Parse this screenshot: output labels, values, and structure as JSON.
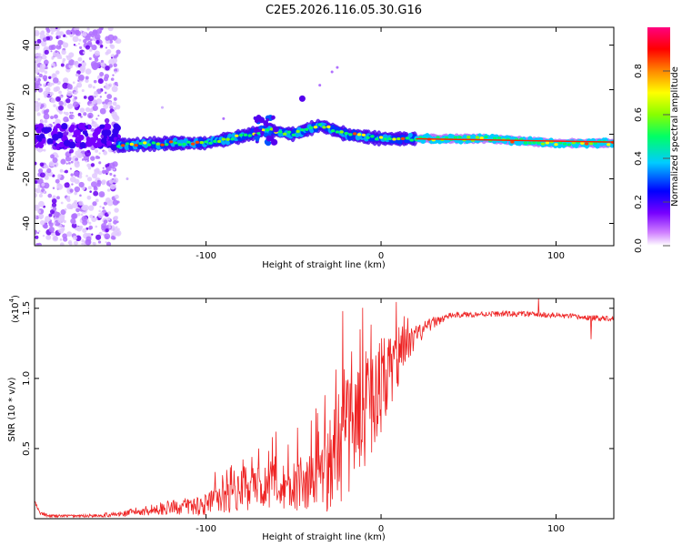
{
  "title": "C2E5.2026.116.05.30.G16",
  "chart_data": [
    {
      "type": "heatmap",
      "xlabel": "Height of straight line (km)",
      "ylabel": "Frequency (Hz)",
      "xlim": [
        -198,
        133
      ],
      "ylim": [
        -50,
        48
      ],
      "xticks": [
        -100,
        0,
        100
      ],
      "xtick_labels": [
        "-100",
        "0",
        "100"
      ],
      "yticks": [
        -40,
        -20,
        0,
        20,
        40
      ],
      "ytick_labels": [
        "-40",
        "-20",
        "0",
        "20",
        "40"
      ],
      "colorbar": {
        "label": "Normalized spectral amplitude",
        "range": [
          0,
          1
        ],
        "ticks": [
          0.0,
          0.2,
          0.4,
          0.6,
          0.8
        ],
        "tick_labels": [
          "0.0",
          "0.2",
          "0.4",
          "0.6",
          "0.8"
        ],
        "colormap": [
          "#ffffff",
          "#d080ff",
          "#7700ff",
          "#0000ff",
          "#00ccff",
          "#00ff66",
          "#88ff00",
          "#ffff00",
          "#ff8800",
          "#ff0000",
          "#ff0080"
        ]
      },
      "ridge": {
        "x": [
          -150,
          -120,
          -100,
          -80,
          -65,
          -50,
          -35,
          -20,
          0,
          20,
          40,
          60,
          80,
          100,
          120,
          133
        ],
        "freq": [
          -5,
          -4,
          -4,
          -1,
          2,
          0,
          4,
          0,
          -2,
          -2,
          -2,
          -2,
          -3,
          -4,
          -4,
          -4
        ]
      },
      "noise_region": {
        "x": [
          -198,
          -150
        ],
        "freq": [
          -50,
          48
        ]
      }
    },
    {
      "type": "line",
      "xlabel": "Height of straight line (km)",
      "ylabel": "SNR (10 * v/v)",
      "scale_label": "(x10",
      "scale_exp": "4",
      "scale_close": ")",
      "xlim": [
        -198,
        133
      ],
      "ylim": [
        0,
        1.57
      ],
      "xticks": [
        -100,
        0,
        100
      ],
      "xtick_labels": [
        "-100",
        "0",
        "100"
      ],
      "yticks": [
        0.5,
        1.0,
        1.5
      ],
      "ytick_labels": [
        "0.5",
        "1.0",
        "1.5"
      ],
      "color": "#ee2222",
      "series": {
        "x": [
          -198,
          -195,
          -190,
          -170,
          -150,
          -140,
          -120,
          -100,
          -90,
          -80,
          -70,
          -60,
          -50,
          -40,
          -30,
          -20,
          -10,
          0,
          10,
          20,
          30,
          40,
          60,
          80,
          100,
          120,
          133
        ],
        "mean": [
          0.12,
          0.04,
          0.02,
          0.02,
          0.03,
          0.05,
          0.08,
          0.1,
          0.15,
          0.2,
          0.22,
          0.25,
          0.24,
          0.25,
          0.35,
          0.55,
          0.75,
          0.95,
          1.15,
          1.3,
          1.4,
          1.45,
          1.46,
          1.46,
          1.45,
          1.43,
          1.43
        ],
        "spread": [
          0.02,
          0.01,
          0.01,
          0.01,
          0.02,
          0.03,
          0.05,
          0.08,
          0.12,
          0.15,
          0.15,
          0.18,
          0.18,
          0.2,
          0.3,
          0.4,
          0.4,
          0.35,
          0.2,
          0.08,
          0.04,
          0.02,
          0.02,
          0.02,
          0.02,
          0.02,
          0.02
        ],
        "spike_points": [
          [
            -70,
            0.5
          ],
          [
            -60,
            0.62
          ],
          [
            -40,
            0.7
          ],
          [
            -22,
            1.48
          ],
          [
            -12,
            1.35
          ],
          [
            -5,
            1.05
          ],
          [
            90,
            1.57
          ],
          [
            120,
            1.28
          ]
        ]
      }
    }
  ]
}
